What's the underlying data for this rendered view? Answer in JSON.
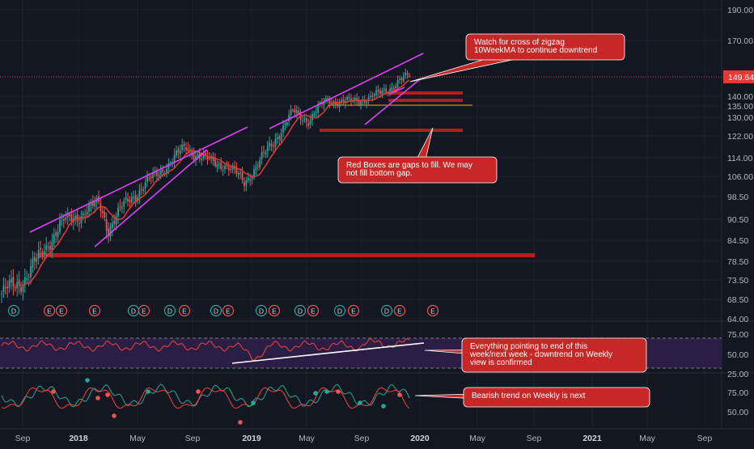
{
  "chart_data": {
    "type": "candlestick",
    "last_price": "149.64",
    "price_axis_ticks": [
      "190.00",
      "170.00",
      "149.64",
      "140.00",
      "135.00",
      "130.00",
      "122.00",
      "114.00",
      "106.00",
      "98.50",
      "90.50",
      "84.50",
      "78.50",
      "73.50",
      "68.50",
      "64.00"
    ],
    "rsi_axis_ticks": [
      "75.00",
      "50.00",
      "25.00"
    ],
    "stoch_axis_ticks": [
      "75.00",
      "50.00"
    ],
    "x_axis_labels": [
      "Sep",
      "2018",
      "May",
      "Sep",
      "2019",
      "May",
      "Sep",
      "2020",
      "May",
      "Sep",
      "2021",
      "May",
      "Sep"
    ],
    "event_markers": [
      "D",
      "E",
      "E",
      "E",
      "D",
      "E",
      "D",
      "E",
      "D",
      "E",
      "D",
      "E",
      "D",
      "E",
      "D",
      "E",
      "D",
      "E"
    ],
    "annotations": {
      "callout_top": [
        "Watch for cross of zigzag",
        "10WeekMA to continue downtrend"
      ],
      "callout_gaps": [
        "Red Boxes are gaps to fill.  We may",
        "not fill bottom gap."
      ],
      "callout_rsi": [
        "Everything pointing to end of this",
        "week/next week -   downtrend on Weekly",
        "view is confirmed"
      ],
      "callout_stoch": [
        "Bearish trend on Weekly is next"
      ]
    },
    "colors": {
      "background": "#131722",
      "up": "#26a69a",
      "down": "#ef5350",
      "ma": "#e53935",
      "trendline": "#e040fb",
      "gap_box": "#b71c1c",
      "callout": "#c62828",
      "rsi_band": "#2a1e44",
      "rsi_line": "#f44336",
      "price_label": "#e53935"
    }
  }
}
